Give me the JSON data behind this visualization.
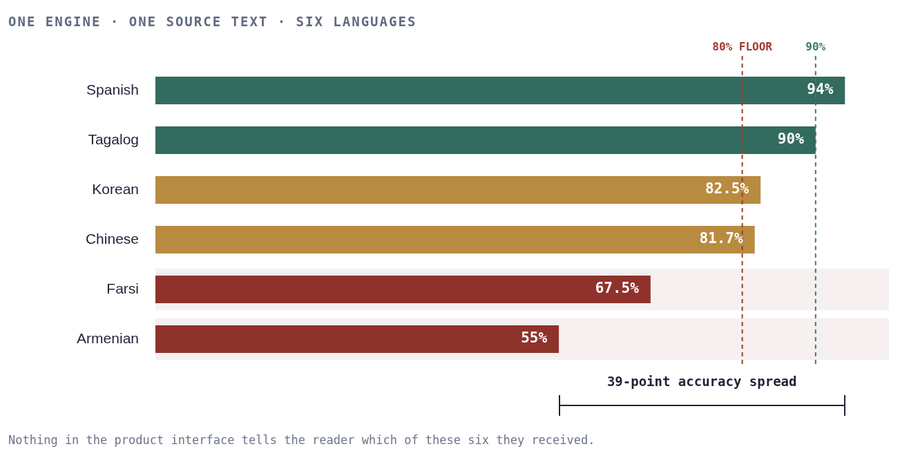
{
  "chart_data": {
    "type": "bar",
    "orientation": "horizontal",
    "title": "ONE ENGINE · ONE SOURCE TEXT · SIX LANGUAGES",
    "categories": [
      "Spanish",
      "Tagalog",
      "Korean",
      "Chinese",
      "Farsi",
      "Armenian"
    ],
    "values": [
      94,
      90,
      82.5,
      81.7,
      67.5,
      55
    ],
    "colors": [
      "#336b5f",
      "#336b5f",
      "#b88b40",
      "#b88b40",
      "#8f322c",
      "#8f322c"
    ],
    "value_labels": [
      "94%",
      "90%",
      "82.5%",
      "81.7%",
      "67.5%",
      "55%"
    ],
    "xlim": [
      0,
      100
    ],
    "tick_labels": "y",
    "legend": false,
    "ref_lines": [
      {
        "axis": "x",
        "value": 80,
        "label": "80% FLOOR",
        "color": "#a03a30",
        "line_style": "dashed"
      },
      {
        "axis": "x",
        "value": 90,
        "label": "90%",
        "color": "#3f7a6a",
        "line_style": "dashed"
      }
    ],
    "bands": [
      {
        "axis": "y",
        "from": "Farsi",
        "to": "Farsi",
        "color": "#f6f1f0"
      },
      {
        "axis": "y",
        "from": "Armenian",
        "to": "Armenian",
        "color": "#f6f1f0"
      }
    ],
    "annotations": [
      "39-point accuracy spread",
      "Nothing in the product interface tells the reader which of these six they received."
    ]
  }
}
